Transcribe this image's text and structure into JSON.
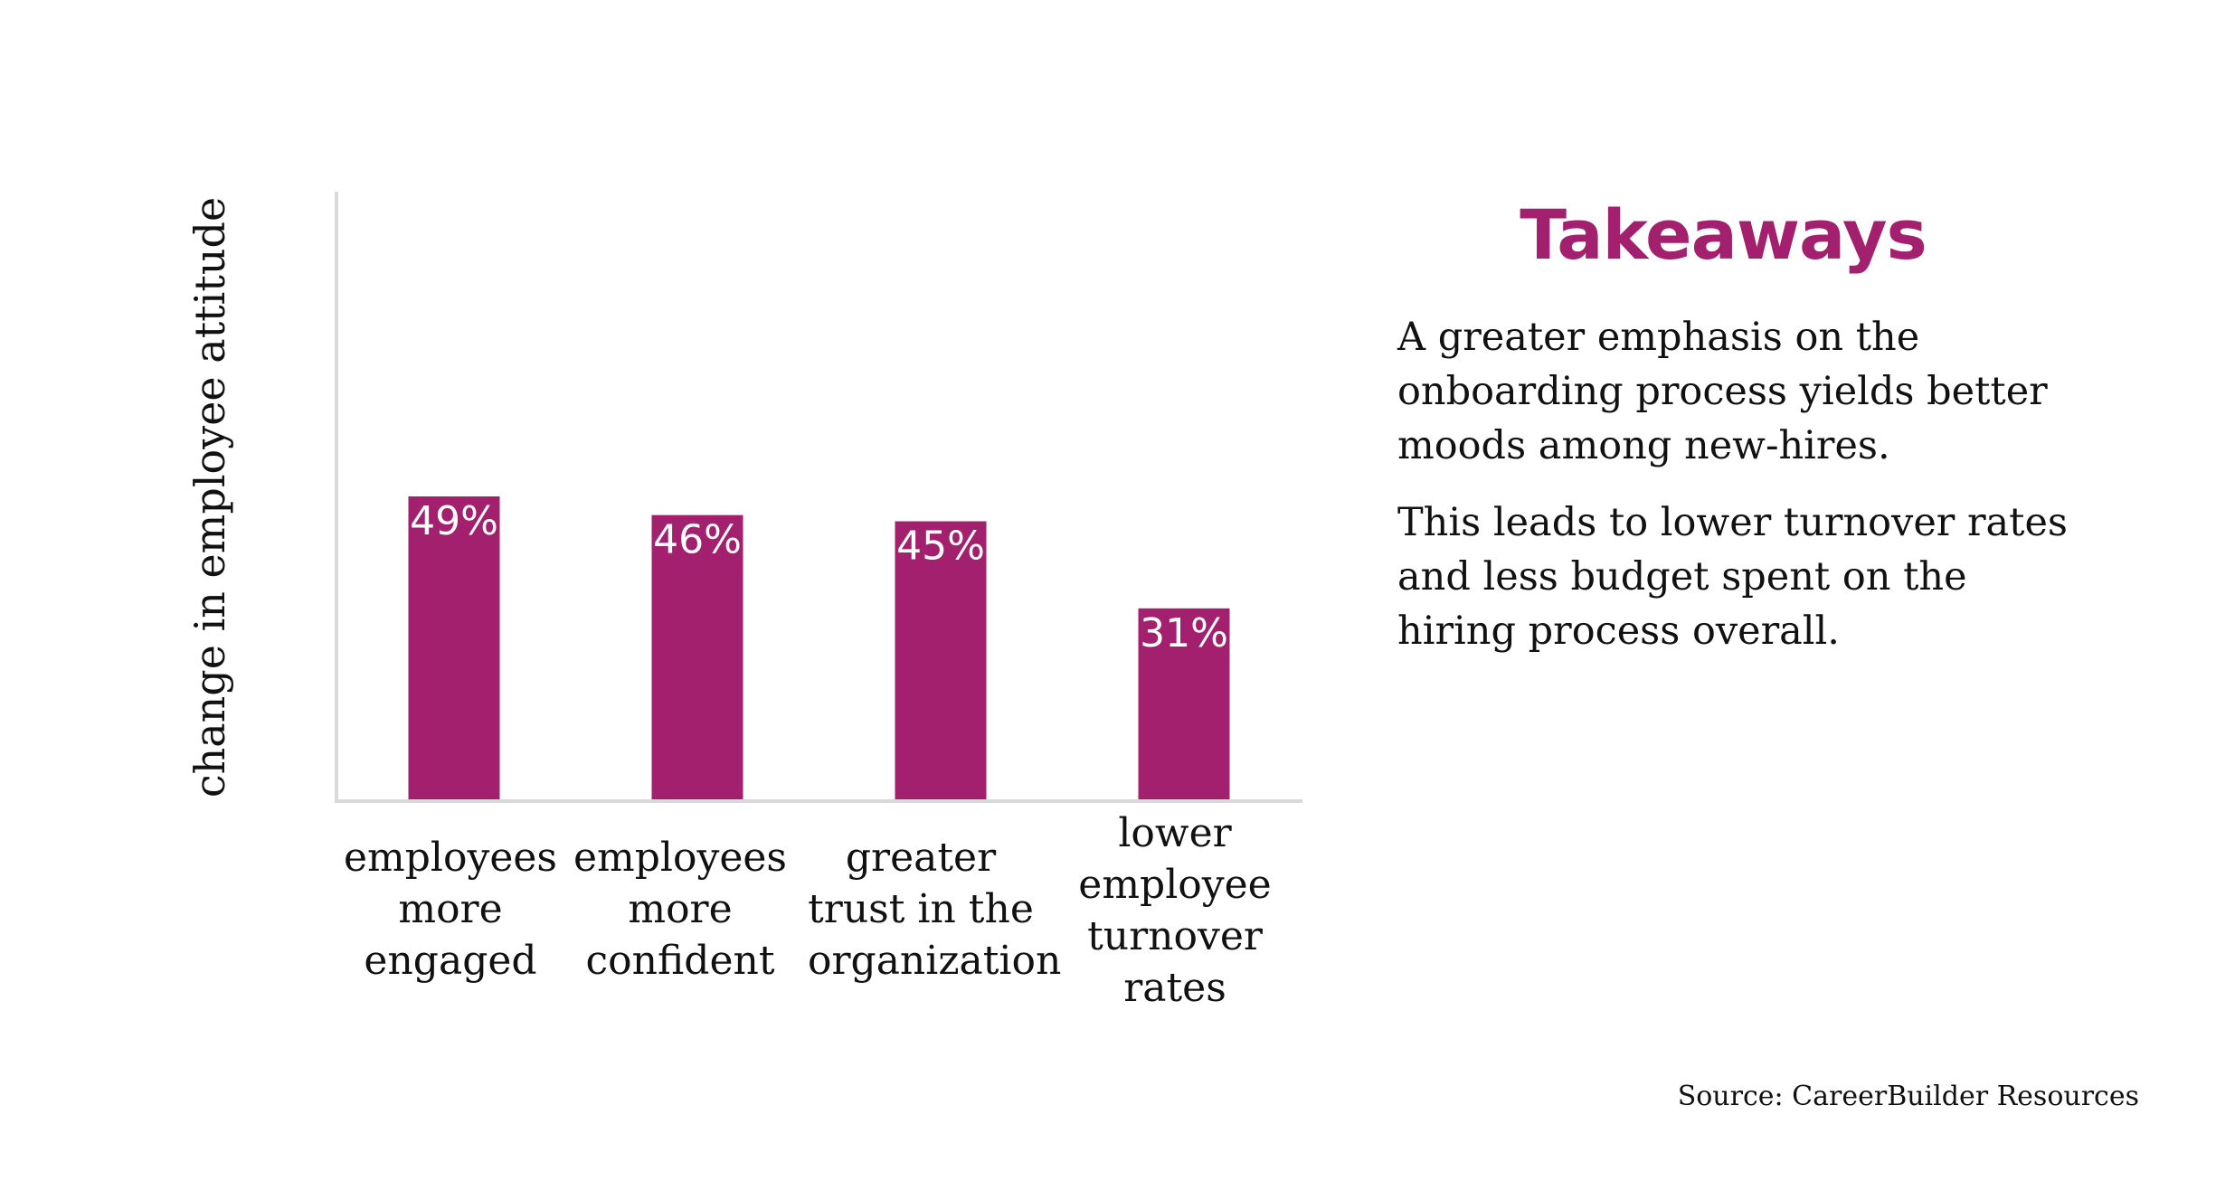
{
  "colors": {
    "accent": "#a3206e",
    "axis": "#d9d9d9",
    "text": "#111111"
  },
  "takeaways": {
    "title": "Takeaways",
    "paragraph1": "A greater emphasis on the onboarding process yields better moods among new-hires.",
    "paragraph2": "This leads to lower turnover rates and less budget spent on the hiring process overall."
  },
  "source": "Source: CareerBuilder Resources",
  "chart_data": {
    "type": "bar",
    "title": "",
    "xlabel": "",
    "ylabel": "change in employee attitude",
    "categories": [
      "employees more engaged",
      "employees more confident",
      "greater trust in the organization",
      "lower employee turnover rates"
    ],
    "values": [
      49,
      46,
      45,
      31
    ],
    "data_labels": [
      "49%",
      "46%",
      "45%",
      "31%"
    ],
    "ylim": [
      0,
      98
    ],
    "grid": false,
    "legend": "none"
  }
}
